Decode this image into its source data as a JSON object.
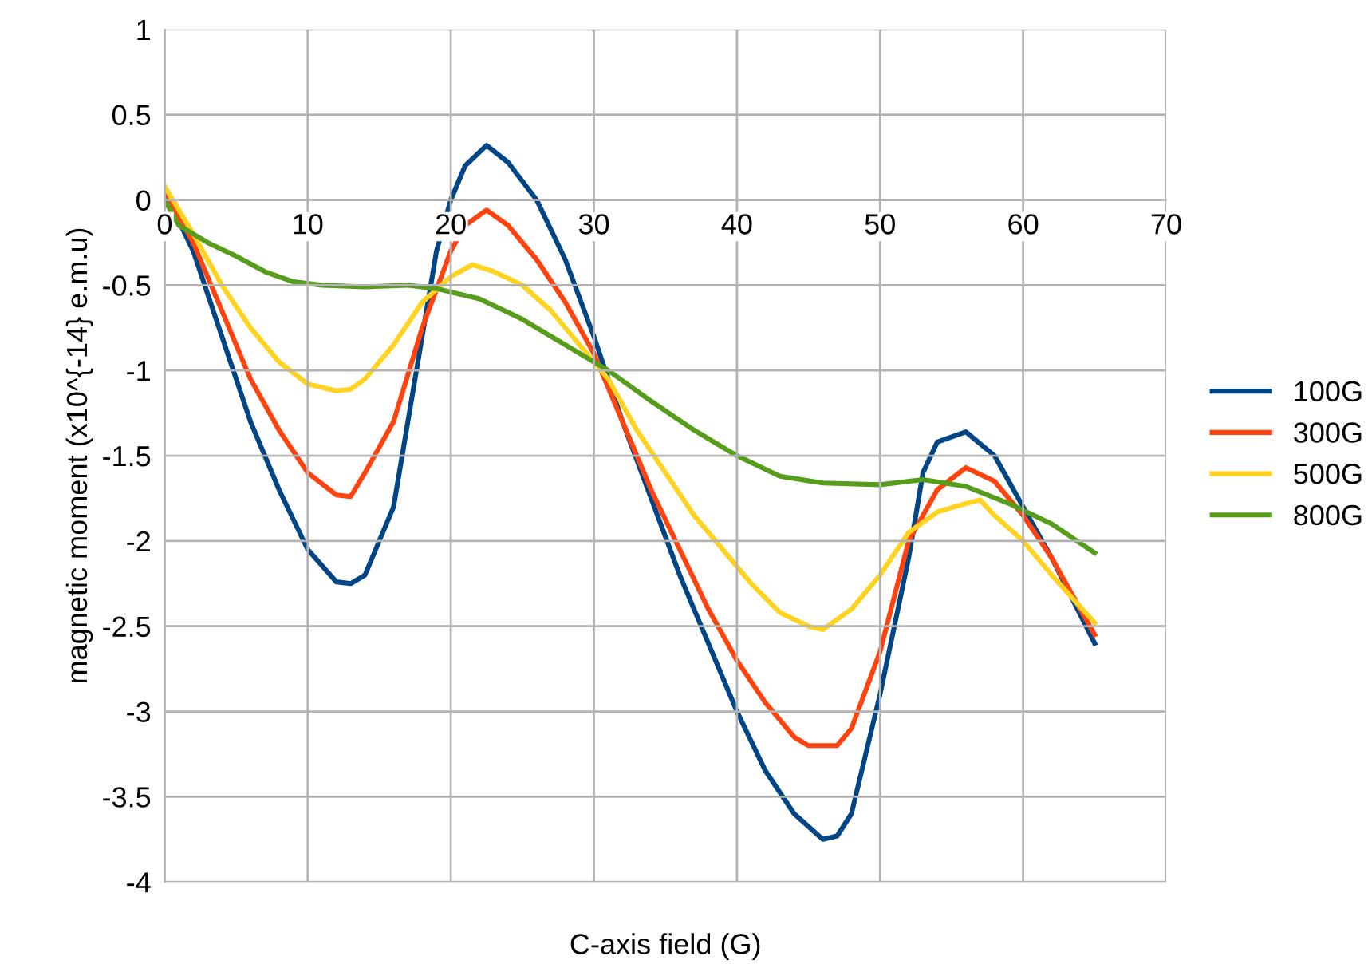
{
  "chart_data": {
    "type": "line",
    "xlabel": "C-axis field (G)",
    "ylabel": "magnetic moment (x10^{-14} e.m.u)",
    "xlim": [
      0,
      70
    ],
    "xticks": [
      0,
      10,
      20,
      30,
      40,
      50,
      60,
      70
    ],
    "ylim": [
      -4,
      1
    ],
    "yticks": [
      -4,
      -3.5,
      -3,
      -2.5,
      -2,
      -1.5,
      -1,
      -0.5,
      0,
      0.5,
      1
    ],
    "grid": true,
    "legend": "right",
    "marker": "none",
    "line_style": "solid",
    "series": [
      {
        "name": "100G",
        "color": "#004586",
        "x": [
          0,
          2,
          4,
          6,
          8,
          10,
          12,
          13,
          14,
          16,
          18,
          19,
          20,
          21,
          22.5,
          24,
          26,
          28,
          30,
          32,
          34,
          36,
          38,
          40,
          42,
          44,
          46,
          47,
          48,
          50,
          52,
          53,
          54,
          56,
          58,
          60,
          62,
          65
        ],
        "values": [
          0.05,
          -0.3,
          -0.8,
          -1.3,
          -1.7,
          -2.05,
          -2.24,
          -2.25,
          -2.2,
          -1.8,
          -0.8,
          -0.3,
          0.0,
          0.2,
          0.32,
          0.22,
          0.0,
          -0.35,
          -0.8,
          -1.3,
          -1.75,
          -2.2,
          -2.6,
          -3.0,
          -3.35,
          -3.6,
          -3.75,
          -3.73,
          -3.6,
          -2.9,
          -2.1,
          -1.6,
          -1.42,
          -1.36,
          -1.5,
          -1.8,
          -2.1,
          -2.6
        ]
      },
      {
        "name": "300G",
        "color": "#ff420e",
        "x": [
          0,
          2,
          4,
          6,
          8,
          10,
          12,
          13,
          14,
          16,
          18,
          20,
          21,
          22.5,
          24,
          26,
          28,
          30,
          32,
          34,
          36,
          38,
          40,
          42,
          44,
          45,
          47,
          48,
          50,
          52,
          54,
          56,
          58,
          60,
          62,
          65
        ],
        "values": [
          0.05,
          -0.25,
          -0.65,
          -1.05,
          -1.35,
          -1.6,
          -1.73,
          -1.74,
          -1.6,
          -1.3,
          -0.75,
          -0.3,
          -0.15,
          -0.06,
          -0.15,
          -0.35,
          -0.6,
          -0.9,
          -1.3,
          -1.7,
          -2.05,
          -2.4,
          -2.7,
          -2.95,
          -3.15,
          -3.2,
          -3.2,
          -3.1,
          -2.65,
          -2.0,
          -1.7,
          -1.57,
          -1.65,
          -1.85,
          -2.1,
          -2.55
        ]
      },
      {
        "name": "500G",
        "color": "#ffd320",
        "x": [
          0,
          2,
          4,
          6,
          8,
          10,
          12,
          13,
          14,
          16,
          18,
          20,
          21.5,
          23,
          25,
          27,
          29,
          31,
          33,
          35,
          37,
          39,
          41,
          43,
          45,
          46,
          48,
          50,
          52,
          54,
          56,
          57,
          58,
          60,
          62,
          65
        ],
        "values": [
          0.08,
          -0.2,
          -0.5,
          -0.75,
          -0.95,
          -1.08,
          -1.12,
          -1.11,
          -1.05,
          -0.85,
          -0.6,
          -0.45,
          -0.38,
          -0.42,
          -0.5,
          -0.65,
          -0.85,
          -1.05,
          -1.35,
          -1.6,
          -1.85,
          -2.05,
          -2.25,
          -2.42,
          -2.5,
          -2.52,
          -2.4,
          -2.2,
          -1.95,
          -1.83,
          -1.78,
          -1.76,
          -1.85,
          -2.0,
          -2.2,
          -2.48
        ]
      },
      {
        "name": "800G",
        "color": "#579d1c",
        "x": [
          0,
          1,
          3,
          5,
          7,
          9,
          11,
          14,
          17,
          19,
          22,
          25,
          28,
          31,
          34,
          37,
          40,
          43,
          46,
          50,
          53,
          56,
          59,
          62,
          65
        ],
        "values": [
          0.0,
          -0.15,
          -0.25,
          -0.33,
          -0.42,
          -0.48,
          -0.5,
          -0.51,
          -0.5,
          -0.52,
          -0.58,
          -0.7,
          -0.85,
          -1.0,
          -1.18,
          -1.35,
          -1.5,
          -1.62,
          -1.66,
          -1.67,
          -1.64,
          -1.68,
          -1.78,
          -1.9,
          -2.07
        ]
      }
    ]
  }
}
